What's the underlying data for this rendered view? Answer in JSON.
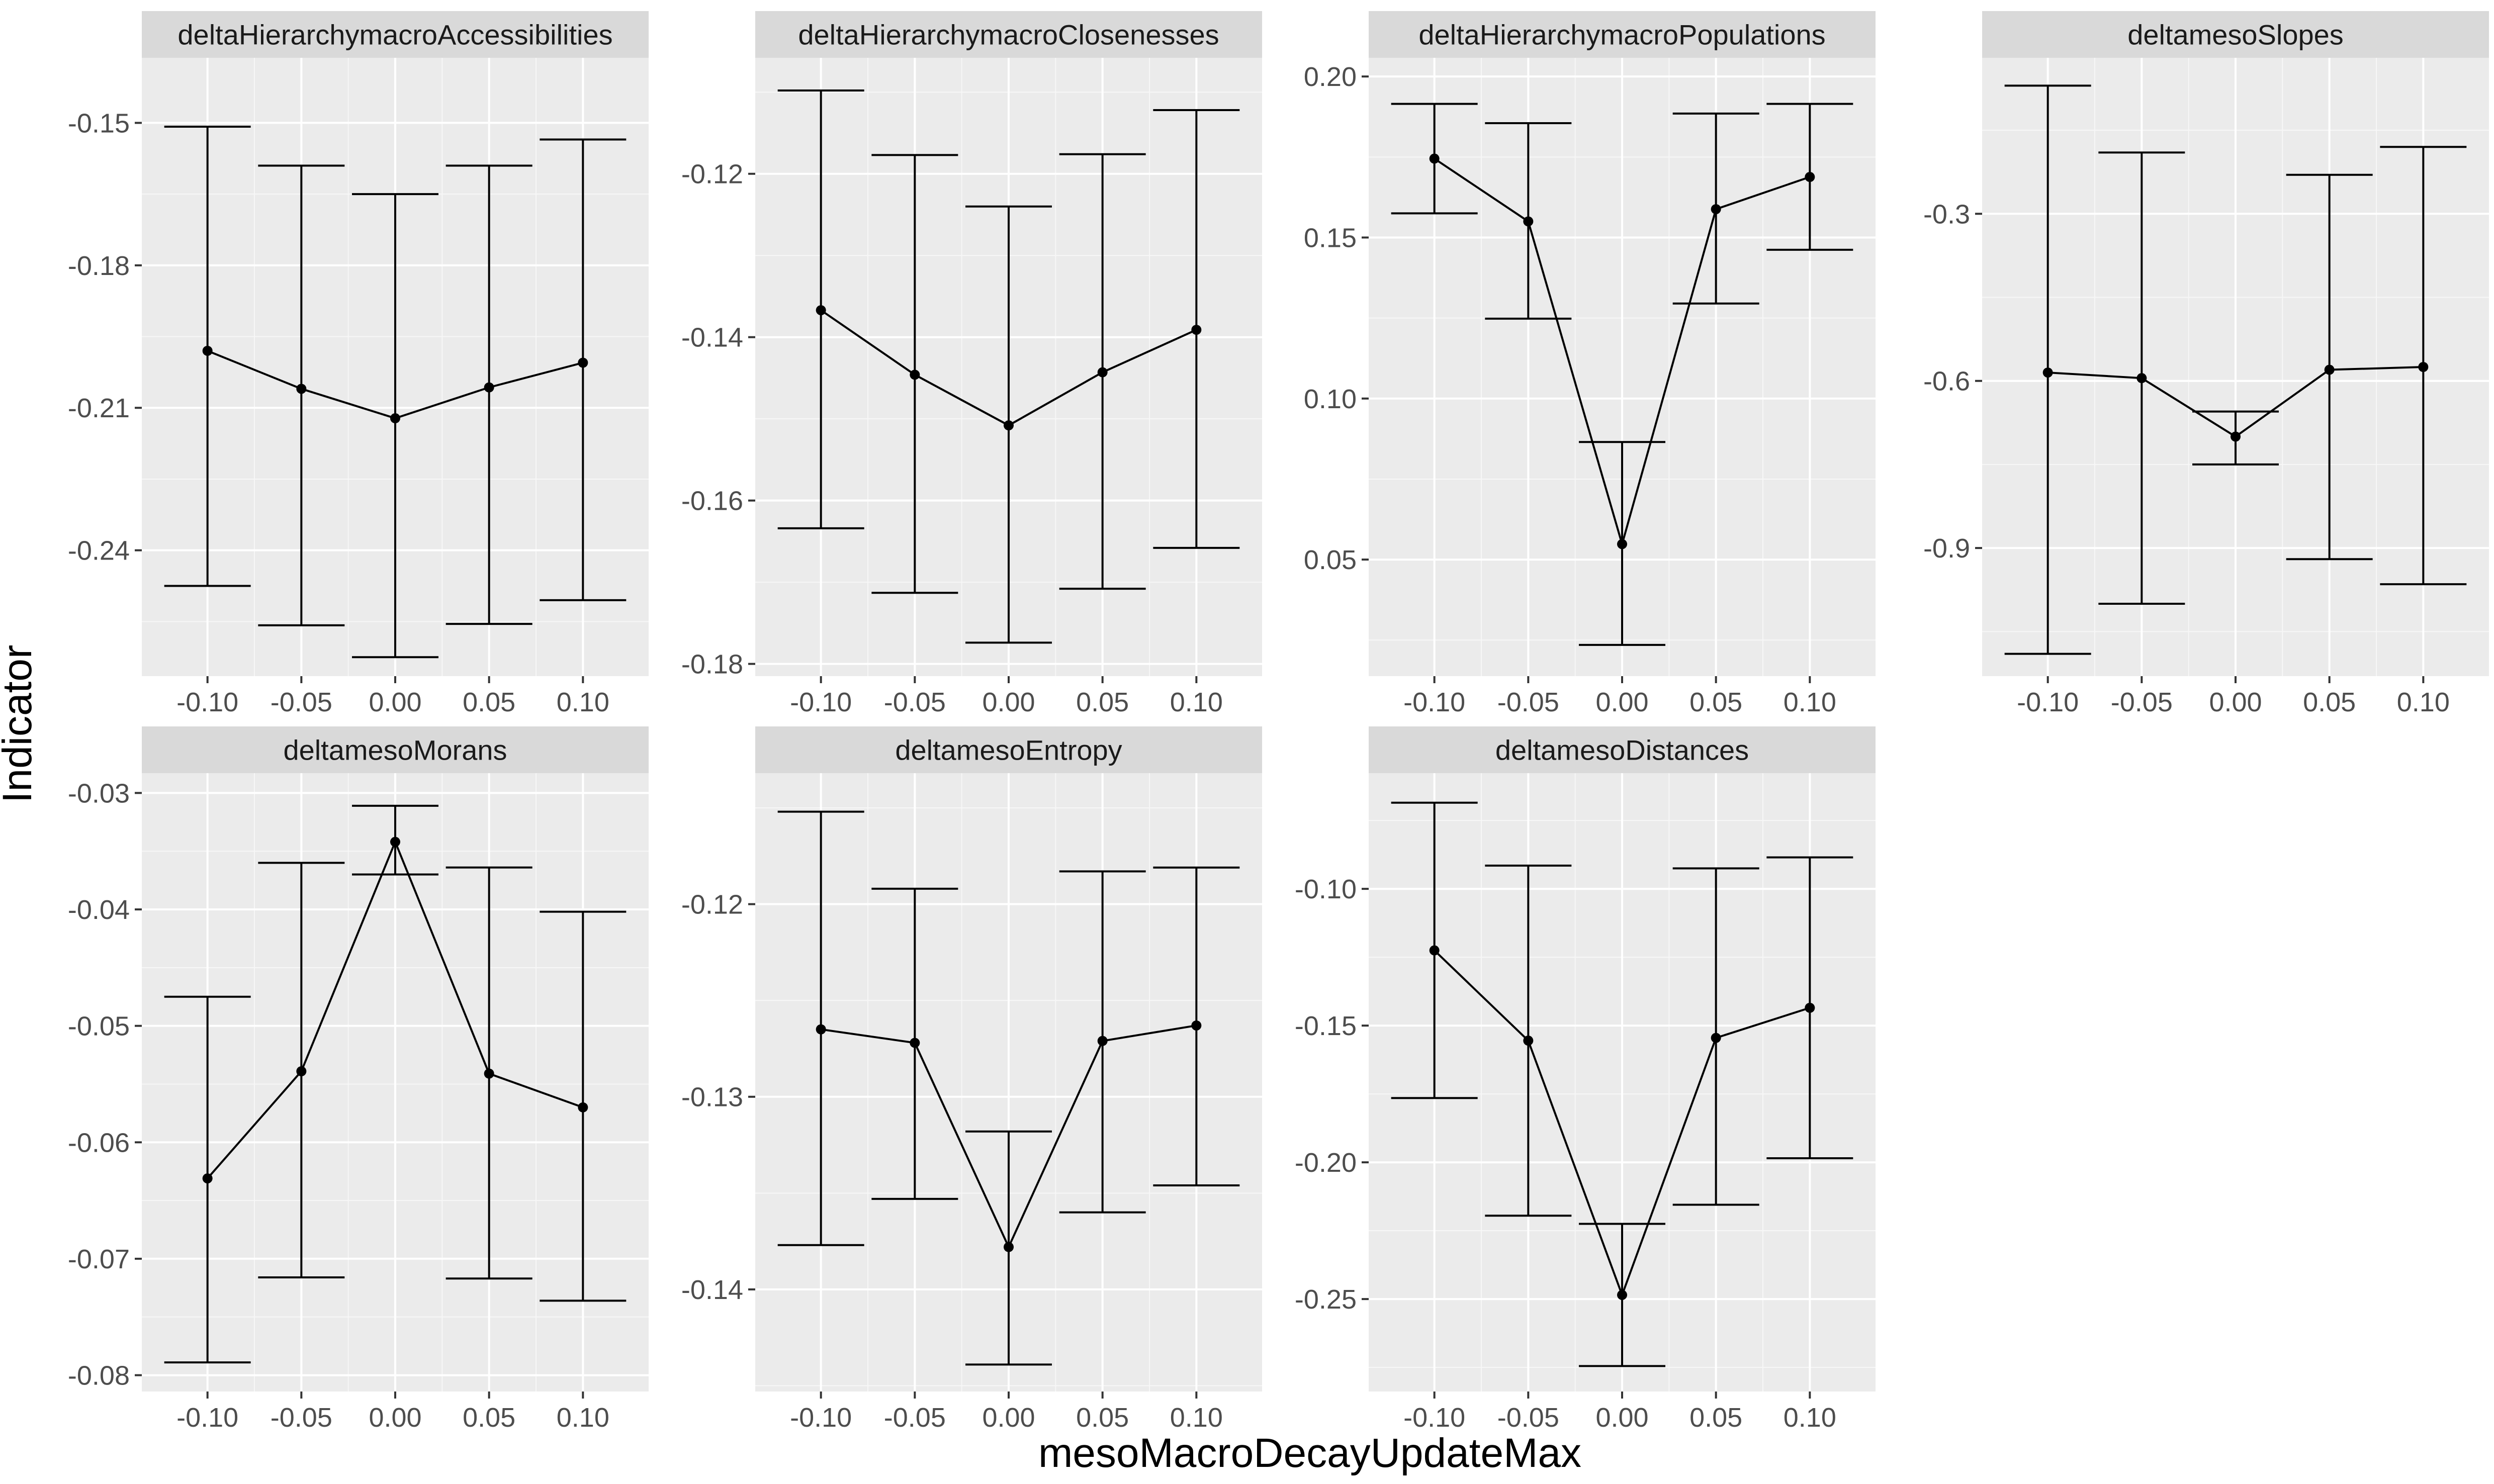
{
  "figure": {
    "xlabel": "mesoMacroDecayUpdateMax",
    "ylabel": "Indicator"
  },
  "chart_data": [
    {
      "type": "line-errorbar",
      "title": "deltaHierarchymacroAccessibilities",
      "x": [
        -0.1,
        -0.05,
        0.0,
        0.05,
        0.1
      ],
      "x_tick_labels": [
        "-0.10",
        "-0.05",
        "0.00",
        "0.05",
        "0.10"
      ],
      "xlim": [
        -0.135,
        0.135
      ],
      "y": [
        -0.198,
        -0.206,
        -0.2122,
        -0.2057,
        -0.2005
      ],
      "ymin": [
        -0.2475,
        -0.2558,
        -0.2625,
        -0.2555,
        -0.2505
      ],
      "ymax": [
        -0.1508,
        -0.159,
        -0.165,
        -0.159,
        -0.1535
      ],
      "ylim": [
        -0.2665,
        -0.1363
      ],
      "y_ticks": [
        -0.15,
        -0.18,
        -0.21,
        -0.24
      ],
      "y_tick_labels": [
        "-0.15",
        "-0.18",
        "-0.21",
        "-0.24"
      ]
    },
    {
      "type": "line-errorbar",
      "title": "deltaHierarchymacroClosenesses",
      "x": [
        -0.1,
        -0.05,
        0.0,
        0.05,
        0.1
      ],
      "x_tick_labels": [
        "-0.10",
        "-0.05",
        "0.00",
        "0.05",
        "0.10"
      ],
      "xlim": [
        -0.135,
        0.135
      ],
      "y": [
        -0.1367,
        -0.1446,
        -0.1508,
        -0.1443,
        -0.1391
      ],
      "ymin": [
        -0.1634,
        -0.1713,
        -0.1774,
        -0.1708,
        -0.1658
      ],
      "ymax": [
        -0.1098,
        -0.1177,
        -0.124,
        -0.1176,
        -0.1122
      ],
      "ylim": [
        -0.1815,
        -0.1058
      ],
      "y_ticks": [
        -0.12,
        -0.14,
        -0.16,
        -0.18
      ],
      "y_tick_labels": [
        "-0.12",
        "-0.14",
        "-0.16",
        "-0.18"
      ]
    },
    {
      "type": "line-errorbar",
      "title": "deltaHierarchymacroPopulations",
      "x": [
        -0.1,
        -0.05,
        0.0,
        0.05,
        0.1
      ],
      "x_tick_labels": [
        "-0.10",
        "-0.05",
        "0.00",
        "0.05",
        "0.10"
      ],
      "xlim": [
        -0.135,
        0.135
      ],
      "y": [
        0.1745,
        0.155,
        0.0548,
        0.1588,
        0.1688
      ],
      "ymin": [
        0.1575,
        0.1248,
        0.0235,
        0.1295,
        0.1462
      ],
      "ymax": [
        0.1915,
        0.1855,
        0.0865,
        0.1885,
        0.1915
      ],
      "ylim": [
        0.0138,
        0.2058
      ],
      "y_ticks": [
        0.05,
        0.1,
        0.15,
        0.2
      ],
      "y_tick_labels": [
        "0.05",
        "0.10",
        "0.15",
        "0.20"
      ]
    },
    {
      "type": "line-errorbar",
      "title": "deltamesoSlopes",
      "x": [
        -0.1,
        -0.05,
        0.0,
        0.05,
        0.1
      ],
      "x_tick_labels": [
        "-0.10",
        "-0.05",
        "0.00",
        "0.05",
        "0.10"
      ],
      "xlim": [
        -0.135,
        0.135
      ],
      "y": [
        -0.585,
        -0.595,
        -0.7,
        -0.58,
        -0.575
      ],
      "ymin": [
        -1.09,
        -1.0,
        -0.75,
        -0.92,
        -0.965
      ],
      "ymax": [
        -0.07,
        -0.19,
        -0.655,
        -0.23,
        -0.18
      ],
      "ylim": [
        -1.13,
        -0.02
      ],
      "y_ticks": [
        -0.3,
        -0.6,
        -0.9
      ],
      "y_tick_labels": [
        "-0.3",
        "-0.6",
        "-0.9"
      ]
    },
    {
      "type": "line-errorbar",
      "title": "deltamesoMorans",
      "x": [
        -0.1,
        -0.05,
        0.0,
        0.05,
        0.1
      ],
      "x_tick_labels": [
        "-0.10",
        "-0.05",
        "0.00",
        "0.05",
        "0.10"
      ],
      "xlim": [
        -0.135,
        0.135
      ],
      "y": [
        -0.0631,
        -0.0539,
        -0.0342,
        -0.0541,
        -0.057
      ],
      "ymin": [
        -0.0789,
        -0.0716,
        -0.037,
        -0.0717,
        -0.0736
      ],
      "ymax": [
        -0.0475,
        -0.036,
        -0.0311,
        -0.0364,
        -0.0402
      ],
      "ylim": [
        -0.0814,
        -0.0283
      ],
      "y_ticks": [
        -0.03,
        -0.04,
        -0.05,
        -0.06,
        -0.07,
        -0.08
      ],
      "y_tick_labels": [
        "-0.03",
        "-0.04",
        "-0.05",
        "-0.06",
        "-0.07",
        "-0.08"
      ]
    },
    {
      "type": "line-errorbar",
      "title": "deltamesoEntropy",
      "x": [
        -0.1,
        -0.05,
        0.0,
        0.05,
        0.1
      ],
      "x_tick_labels": [
        "-0.10",
        "-0.05",
        "0.00",
        "0.05",
        "0.10"
      ],
      "xlim": [
        -0.135,
        0.135
      ],
      "y": [
        -0.1265,
        -0.1272,
        -0.1378,
        -0.1271,
        -0.1263
      ],
      "ymin": [
        -0.1377,
        -0.1353,
        -0.1439,
        -0.136,
        -0.1346
      ],
      "ymax": [
        -0.1152,
        -0.1192,
        -0.1318,
        -0.1183,
        -0.1181
      ],
      "ylim": [
        -0.1453,
        -0.1132
      ],
      "y_ticks": [
        -0.12,
        -0.13,
        -0.14
      ],
      "y_tick_labels": [
        "-0.12",
        "-0.13",
        "-0.14"
      ]
    },
    {
      "type": "line-errorbar",
      "title": "deltamesoDistances",
      "x": [
        -0.1,
        -0.05,
        0.0,
        0.05,
        0.1
      ],
      "x_tick_labels": [
        "-0.10",
        "-0.05",
        "0.00",
        "0.05",
        "0.10"
      ],
      "xlim": [
        -0.135,
        0.135
      ],
      "y": [
        -0.1225,
        -0.1555,
        -0.2485,
        -0.1545,
        -0.1435
      ],
      "ymin": [
        -0.1765,
        -0.2195,
        -0.2745,
        -0.2155,
        -0.1985
      ],
      "ymax": [
        -0.0685,
        -0.0915,
        -0.2225,
        -0.0925,
        -0.0885
      ],
      "ylim": [
        -0.2838,
        -0.0577
      ],
      "y_ticks": [
        -0.1,
        -0.15,
        -0.2,
        -0.25
      ],
      "y_tick_labels": [
        "-0.10",
        "-0.15",
        "-0.20",
        "-0.25"
      ]
    }
  ]
}
